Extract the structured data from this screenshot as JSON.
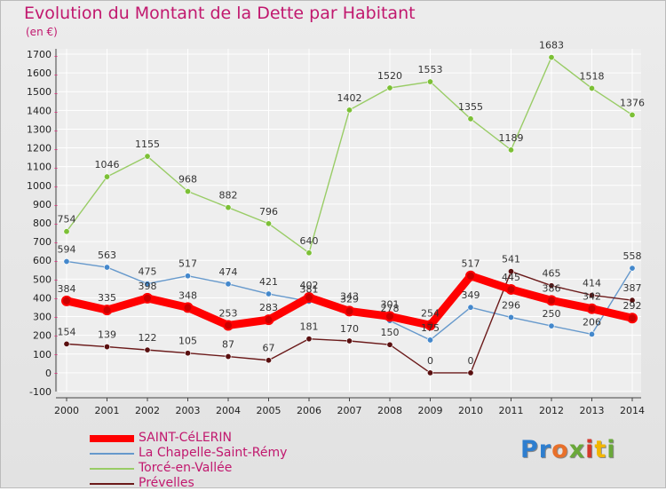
{
  "title": "Evolution du Montant de la Dette par Habitant",
  "unit": "(en €)",
  "logo": {
    "text": "Proxiti",
    "colors": [
      "#2e7ecf",
      "#2e7ecf",
      "#e8702a",
      "#6aa83a",
      "#d4382c",
      "#f2b600",
      "#6aa83a"
    ]
  },
  "chart_data": {
    "type": "line",
    "title": "Evolution du Montant de la Dette par Habitant",
    "ylabel": "(en €)",
    "xlabel": "",
    "ylim": [
      -100,
      1700
    ],
    "y_ticks": [
      -100,
      0,
      100,
      200,
      300,
      400,
      500,
      600,
      700,
      800,
      900,
      1000,
      1100,
      1200,
      1300,
      1400,
      1500,
      1600,
      1700
    ],
    "x": [
      "2000",
      "2001",
      "2002",
      "2003",
      "2004",
      "2005",
      "2006",
      "2007",
      "2008",
      "2009",
      "2010",
      "2011",
      "2012",
      "2013",
      "2014"
    ],
    "grid": true,
    "legend_position": "bottom-left",
    "series": [
      {
        "name": "SAINT-CéLERIN",
        "color": "#ff0000",
        "marker": "#cc0000",
        "values": [
          384,
          335,
          398,
          348,
          253,
          283,
          402,
          329,
          301,
          254,
          517,
          445,
          386,
          342,
          292
        ]
      },
      {
        "name": "La Chapelle-Saint-Rémy",
        "color": "#6699cc",
        "marker": "#4488cc",
        "values": [
          594,
          563,
          475,
          517,
          474,
          421,
          381,
          343,
          278,
          175,
          349,
          296,
          250,
          206,
          558
        ]
      },
      {
        "name": "Torcé-en-Vallée",
        "color": "#99cc66",
        "marker": "#7cc036",
        "values": [
          754,
          1046,
          1155,
          968,
          882,
          796,
          640,
          1402,
          1520,
          1553,
          1355,
          1189,
          1683,
          1518,
          1376
        ]
      },
      {
        "name": "Prévelles",
        "color": "#6b1a1a",
        "marker": "#5a1010",
        "values": [
          154,
          139,
          122,
          105,
          87,
          67,
          181,
          170,
          150,
          0,
          0,
          541,
          465,
          414,
          387
        ]
      }
    ]
  }
}
